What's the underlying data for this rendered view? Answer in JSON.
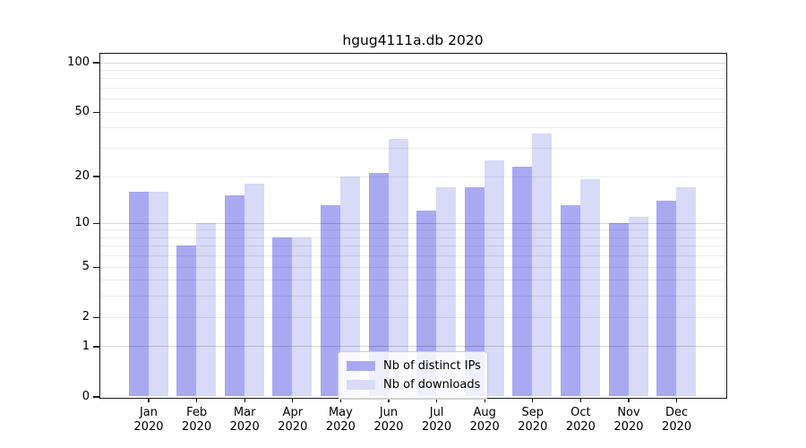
{
  "title": "hgug4111a.db 2020",
  "chart_data": {
    "type": "bar",
    "title": "hgug4111a.db 2020",
    "categories": [
      "Jan 2020",
      "Feb 2020",
      "Mar 2020",
      "Apr 2020",
      "May 2020",
      "Jun 2020",
      "Jul 2020",
      "Aug 2020",
      "Sep 2020",
      "Oct 2020",
      "Nov 2020",
      "Dec 2020"
    ],
    "series": [
      {
        "name": "Nb of distinct IPs",
        "color": "#a9a9f2",
        "values": [
          16,
          7,
          15,
          8,
          13,
          21,
          12,
          17,
          23,
          13,
          10,
          14
        ]
      },
      {
        "name": "Nb of downloads",
        "color": "#d9d9f8",
        "values": [
          16,
          10,
          18,
          8,
          20,
          34,
          17,
          25,
          37,
          19,
          11,
          17
        ]
      }
    ],
    "xlabel": "",
    "ylabel": "",
    "yscale": "log1p (symlog-like: y = ln(1+v))",
    "ytick_values": [
      0,
      1,
      2,
      5,
      10,
      20,
      50,
      100
    ],
    "ylim": [
      0,
      113
    ],
    "grid": "horizontal major+minor, drawn over semi-transparent bars",
    "legend_position": "lower center (inside plot)"
  },
  "legend": {
    "items": [
      {
        "label": "Nb of distinct IPs",
        "swatch": "ips-swatch"
      },
      {
        "label": "Nb of downloads",
        "swatch": "downloads-swatch"
      }
    ]
  },
  "colors": {
    "ips_bar": "#a9a9f2",
    "downloads_bar": "#d9d9f8",
    "spine": "#1a1a1a",
    "grid_major": "rgba(0,0,0,0.16)",
    "grid_minor": "rgba(0,0,0,0.075)",
    "legend_border": "#cccccc",
    "text": "#000000"
  }
}
